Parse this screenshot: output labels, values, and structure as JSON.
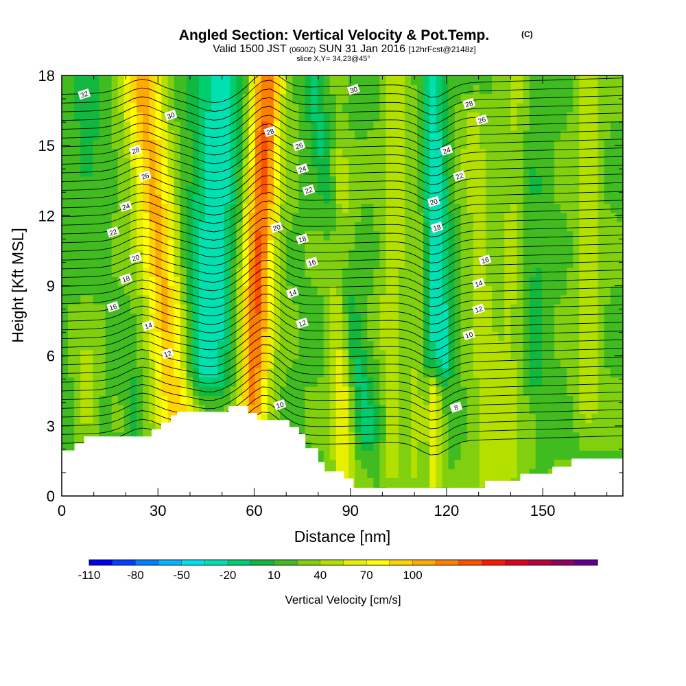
{
  "header": {
    "title": "Angled Section: Vertical Velocity & Pot.Temp.",
    "title_units": "(C)",
    "valid_prefix": "Valid 1500 JST",
    "valid_utc": "(0600Z)",
    "valid_date": "SUN 31 Jan 2016",
    "forecast": "[12hrFcst@2148z]",
    "slice": "slice X,Y= 34,23@45°"
  },
  "chart_data": {
    "type": "heatmap",
    "xlabel": "Distance [nm]",
    "ylabel": "Height [Kft MSL]",
    "xlim": [
      0,
      175
    ],
    "ylim": [
      0,
      18
    ],
    "x_ticks": [
      "0",
      "30",
      "60",
      "90",
      "120",
      "150"
    ],
    "x_tick_values": [
      0,
      30,
      60,
      90,
      120,
      150
    ],
    "y_ticks": [
      "0",
      "3",
      "6",
      "9",
      "12",
      "15",
      "18"
    ],
    "y_tick_values": [
      0,
      3,
      6,
      9,
      12,
      15,
      18
    ],
    "colorbar": {
      "label": "Vertical Velocity [cm/s]",
      "tick_labels": [
        "-110",
        "-80",
        "-50",
        "-20",
        "10",
        "40",
        "70",
        "100"
      ],
      "tick_values": [
        -110,
        -80,
        -50,
        -20,
        10,
        40,
        70,
        100
      ],
      "colors": [
        "#0000ee",
        "#0040ff",
        "#0080ff",
        "#00b4ff",
        "#00e0f0",
        "#00e0b0",
        "#00cc70",
        "#10b840",
        "#40bc20",
        "#80d010",
        "#b4e000",
        "#e8f000",
        "#ffff00",
        "#ffd400",
        "#ffaa00",
        "#ff8000",
        "#ff5000",
        "#ff1800",
        "#e00020",
        "#b80040",
        "#900060",
        "#600090"
      ]
    },
    "terrain_kft": [
      [
        0,
        1.95
      ],
      [
        4,
        1.95
      ],
      [
        4,
        2.25
      ],
      [
        7,
        2.25
      ],
      [
        7,
        2.55
      ],
      [
        28,
        2.55
      ],
      [
        28,
        2.85
      ],
      [
        31,
        2.85
      ],
      [
        31,
        3.15
      ],
      [
        34,
        3.15
      ],
      [
        34,
        3.45
      ],
      [
        36,
        3.45
      ],
      [
        36,
        3.6
      ],
      [
        52,
        3.6
      ],
      [
        52,
        3.85
      ],
      [
        58,
        3.85
      ],
      [
        58,
        3.55
      ],
      [
        61,
        3.55
      ],
      [
        61,
        3.25
      ],
      [
        71,
        3.25
      ],
      [
        71,
        2.95
      ],
      [
        74,
        2.95
      ],
      [
        74,
        2.65
      ],
      [
        76,
        2.65
      ],
      [
        76,
        2.05
      ],
      [
        80,
        2.05
      ],
      [
        80,
        1.45
      ],
      [
        82,
        1.45
      ],
      [
        82,
        1.05
      ],
      [
        88,
        1.05
      ],
      [
        88,
        0.75
      ],
      [
        91,
        0.75
      ],
      [
        91,
        0.35
      ],
      [
        132,
        0.35
      ],
      [
        132,
        0.65
      ],
      [
        143,
        0.65
      ],
      [
        143,
        0.95
      ],
      [
        153,
        0.95
      ],
      [
        153,
        1.25
      ],
      [
        159,
        1.25
      ],
      [
        159,
        1.6
      ],
      [
        175,
        1.6
      ]
    ],
    "w_features": [
      {
        "x": 25,
        "x_bottom": 36,
        "y_top": 18,
        "y_bottom": 3,
        "halfwidth": 6,
        "value": 80
      },
      {
        "x": 22,
        "x_bottom": 22,
        "y_top": 4.3,
        "y_bottom": 2.6,
        "halfwidth": 2,
        "value": -30
      },
      {
        "x": 50,
        "x_bottom": 45,
        "y_top": 18,
        "y_bottom": 5.5,
        "halfwidth": 8,
        "value": -55
      },
      {
        "x": 64,
        "x_bottom": 59,
        "y_top": 18,
        "y_bottom": 4,
        "halfwidth": 5,
        "value": 110
      },
      {
        "x": 56,
        "x_bottom": 56,
        "y_top": 5,
        "y_bottom": 3.6,
        "halfwidth": 4,
        "value": -30
      },
      {
        "x": 78,
        "x_bottom": 95,
        "y_top": 18,
        "y_bottom": 3,
        "halfwidth": 3.5,
        "value": -35
      },
      {
        "x": 86,
        "x_bottom": 88,
        "y_top": 14,
        "y_bottom": 0.6,
        "halfwidth": 3.5,
        "value": 40
      },
      {
        "x": 104,
        "x_bottom": 102,
        "y_top": 18,
        "y_bottom": 1.2,
        "halfwidth": 3.5,
        "value": 30
      },
      {
        "x": 115,
        "x_bottom": 118,
        "y_top": 18,
        "y_bottom": 6,
        "halfwidth": 4.5,
        "value": -55
      },
      {
        "x": 112,
        "x_bottom": 110,
        "y_top": 18,
        "y_bottom": 1,
        "halfwidth": 2.5,
        "value": 20
      },
      {
        "x": 128,
        "x_bottom": 133,
        "y_top": 16,
        "y_bottom": 1,
        "halfwidth": 5,
        "value": 20
      },
      {
        "x": 116,
        "x_bottom": 116,
        "y_top": 4.5,
        "y_bottom": 1,
        "halfwidth": 2,
        "value": 40
      },
      {
        "x": 143,
        "x_bottom": 139,
        "y_top": 18,
        "y_bottom": 1,
        "halfwidth": 5,
        "value": 20
      },
      {
        "x": 147,
        "x_bottom": 147,
        "y_top": 18,
        "y_bottom": 5,
        "halfwidth": 4,
        "value": -20
      },
      {
        "x": 164,
        "x_bottom": 164,
        "y_top": 18,
        "y_bottom": 4,
        "halfwidth": 4,
        "value": 25
      },
      {
        "x": 8,
        "x_bottom": 8,
        "y_top": 18,
        "y_bottom": 14,
        "halfwidth": 5,
        "value": -20
      },
      {
        "x": 8,
        "x_bottom": 8,
        "y_top": 5.5,
        "y_bottom": 3.5,
        "halfwidth": 3,
        "value": 25
      },
      {
        "x": 100,
        "x_bottom": 100,
        "y_top": 5,
        "y_bottom": 0.5,
        "halfwidth": 3,
        "value": -15
      }
    ],
    "theta_contours": [
      6,
      8,
      10,
      12,
      14,
      16,
      18,
      20,
      22,
      24,
      26,
      28,
      30,
      32
    ],
    "contour_labels": [
      {
        "text": "32",
        "x": 7,
        "y": 17.2
      },
      {
        "text": "30",
        "x": 34,
        "y": 16.3
      },
      {
        "text": "28",
        "x": 23,
        "y": 14.8
      },
      {
        "text": "26",
        "x": 26,
        "y": 13.7
      },
      {
        "text": "24",
        "x": 20,
        "y": 12.4
      },
      {
        "text": "22",
        "x": 16,
        "y": 11.3
      },
      {
        "text": "20",
        "x": 23,
        "y": 10.2
      },
      {
        "text": "18",
        "x": 20,
        "y": 9.3
      },
      {
        "text": "16",
        "x": 16,
        "y": 8.1
      },
      {
        "text": "14",
        "x": 27,
        "y": 7.3
      },
      {
        "text": "12",
        "x": 33,
        "y": 6.1
      },
      {
        "text": "28",
        "x": 65,
        "y": 15.6
      },
      {
        "text": "26",
        "x": 74,
        "y": 15.0
      },
      {
        "text": "24",
        "x": 75,
        "y": 14.0
      },
      {
        "text": "22",
        "x": 77,
        "y": 13.1
      },
      {
        "text": "20",
        "x": 67,
        "y": 11.5
      },
      {
        "text": "18",
        "x": 75,
        "y": 11.0
      },
      {
        "text": "16",
        "x": 78,
        "y": 10.0
      },
      {
        "text": "14",
        "x": 72,
        "y": 8.7
      },
      {
        "text": "12",
        "x": 75,
        "y": 7.4
      },
      {
        "text": "10",
        "x": 68,
        "y": 3.9
      },
      {
        "text": "30",
        "x": 91,
        "y": 17.4
      },
      {
        "text": "28",
        "x": 127,
        "y": 16.8
      },
      {
        "text": "26",
        "x": 131,
        "y": 16.1
      },
      {
        "text": "24",
        "x": 120,
        "y": 14.8
      },
      {
        "text": "22",
        "x": 124,
        "y": 13.7
      },
      {
        "text": "20",
        "x": 116,
        "y": 12.6
      },
      {
        "text": "18",
        "x": 117,
        "y": 11.5
      },
      {
        "text": "16",
        "x": 132,
        "y": 10.1
      },
      {
        "text": "14",
        "x": 130,
        "y": 9.1
      },
      {
        "text": "12",
        "x": 130,
        "y": 8.0
      },
      {
        "text": "10",
        "x": 127,
        "y": 6.9
      },
      {
        "text": "8",
        "x": 123,
        "y": 3.8
      }
    ]
  }
}
